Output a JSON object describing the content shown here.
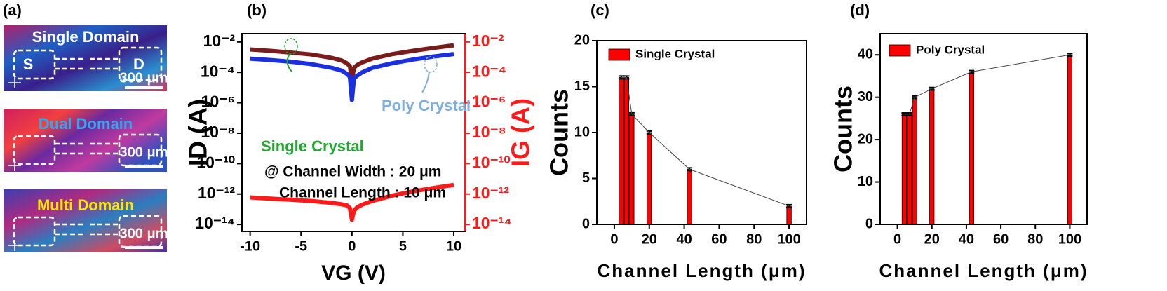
{
  "panel_a": {
    "label": "(a)",
    "images": [
      {
        "title": "Single Domain",
        "scale": "300 μm",
        "source": "S",
        "drain": "D"
      },
      {
        "title": "Dual Domain",
        "scale": "300 μm"
      },
      {
        "title": "Multi Domain",
        "scale": "300 μm"
      }
    ]
  },
  "chart_data": [
    {
      "type": "line",
      "panel_label": "(b)",
      "xlabel": "VG (V)",
      "ylabel": "ID (A)",
      "y2label": "IG (A)",
      "yscale": "log",
      "y2scale": "log",
      "x": [
        -10,
        -8,
        -6,
        -4,
        -2,
        -1,
        -0.5,
        -0.2,
        0,
        0.2,
        0.5,
        1,
        2,
        4,
        6,
        8,
        10
      ],
      "series": [
        {
          "name": "Single Crystal",
          "color": "#7b1c1c",
          "values": [
            0.0032,
            0.0026,
            0.002,
            0.0015,
            0.0009,
            0.0006,
            0.0004,
            0.00025,
            3e-05,
            0.0002,
            0.0003,
            0.00045,
            0.0008,
            0.0016,
            0.0026,
            0.004,
            0.006
          ]
        },
        {
          "name": "Poly Crystal",
          "color": "#1a2fe0",
          "values": [
            0.0008,
            0.00065,
            0.0005,
            0.00035,
            0.0002,
            0.00013,
            8e-05,
            5e-05,
            1.5e-06,
            4e-05,
            6e-05,
            0.0001,
            0.0002,
            0.0004,
            0.0007,
            0.0011,
            0.0016
          ]
        },
        {
          "color": "#ff1a1a",
          "axis": "y2",
          "values": [
            6e-13,
            5e-13,
            4.2e-13,
            3.5e-13,
            2.6e-13,
            2.1e-13,
            1.8e-13,
            1.2e-13,
            2e-14,
            8e-14,
            1.3e-13,
            2e-13,
            3.5e-13,
            8e-13,
            1.5e-12,
            2.5e-12,
            4e-12
          ]
        }
      ],
      "xlim": [
        -10.8,
        11.1
      ],
      "xticks": [
        -10,
        -5,
        0,
        5,
        10
      ],
      "ylim": [
        3.5e-15,
        0.035
      ],
      "yticks": [
        {
          "value": 0.01,
          "label": "10⁻²"
        },
        {
          "value": 0.0001,
          "label": "10⁻⁴"
        },
        {
          "value": 1e-06,
          "label": "10⁻⁶"
        },
        {
          "value": 1e-08,
          "label": "10⁻⁸"
        },
        {
          "value": 1e-10,
          "label": "10⁻¹⁰"
        },
        {
          "value": 1e-12,
          "label": "10⁻¹²"
        },
        {
          "value": 1e-14,
          "label": "10⁻¹⁴"
        }
      ],
      "y2lim": [
        3.5e-15,
        0.035
      ],
      "y2ticks": [
        {
          "value": 0.01,
          "label": "10⁻²"
        },
        {
          "value": 0.0001,
          "label": "10⁻⁴"
        },
        {
          "value": 1e-06,
          "label": "10⁻⁶"
        },
        {
          "value": 1e-08,
          "label": "10⁻⁸"
        },
        {
          "value": 1e-10,
          "label": "10⁻¹⁰"
        },
        {
          "value": 1e-12,
          "label": "10⁻¹²"
        },
        {
          "value": 1e-14,
          "label": "10⁻¹⁴"
        }
      ],
      "annotations": [
        "@ Channel Width : 20 μm",
        "Channel Length : 10 μm"
      ]
    },
    {
      "type": "bar",
      "panel_label": "(c)",
      "xlabel": "Channel Length (μm)",
      "ylabel": "Counts",
      "x": [
        4,
        7,
        10,
        20,
        43,
        100
      ],
      "series": [
        {
          "name": "Single Crystal",
          "color": "#ff0000",
          "values": [
            16,
            16,
            12,
            10,
            6,
            2
          ],
          "errors": [
            0.15,
            0.15,
            0.15,
            0.15,
            0.15,
            0.15
          ]
        }
      ],
      "xlim": [
        -10,
        110
      ],
      "xticks": [
        0,
        20,
        40,
        60,
        80,
        100
      ],
      "ylim": [
        0,
        20
      ],
      "yticks": [
        0,
        5,
        10,
        15,
        20
      ]
    },
    {
      "type": "bar",
      "panel_label": "(d)",
      "xlabel": "Channel Length (μm)",
      "ylabel": "Counts",
      "x": [
        4,
        7,
        10,
        20,
        43,
        100
      ],
      "series": [
        {
          "name": "Poly Crystal",
          "color": "#ff0000",
          "values": [
            26,
            26,
            30,
            32,
            36,
            40
          ],
          "errors": [
            0.3,
            0.3,
            0.3,
            0.3,
            0.3,
            0.3
          ]
        }
      ],
      "xlim": [
        -10,
        110
      ],
      "xticks": [
        0,
        20,
        40,
        60,
        80,
        100
      ],
      "ylim": [
        0,
        45
      ],
      "yticks": [
        0,
        10,
        20,
        30,
        40
      ]
    }
  ]
}
